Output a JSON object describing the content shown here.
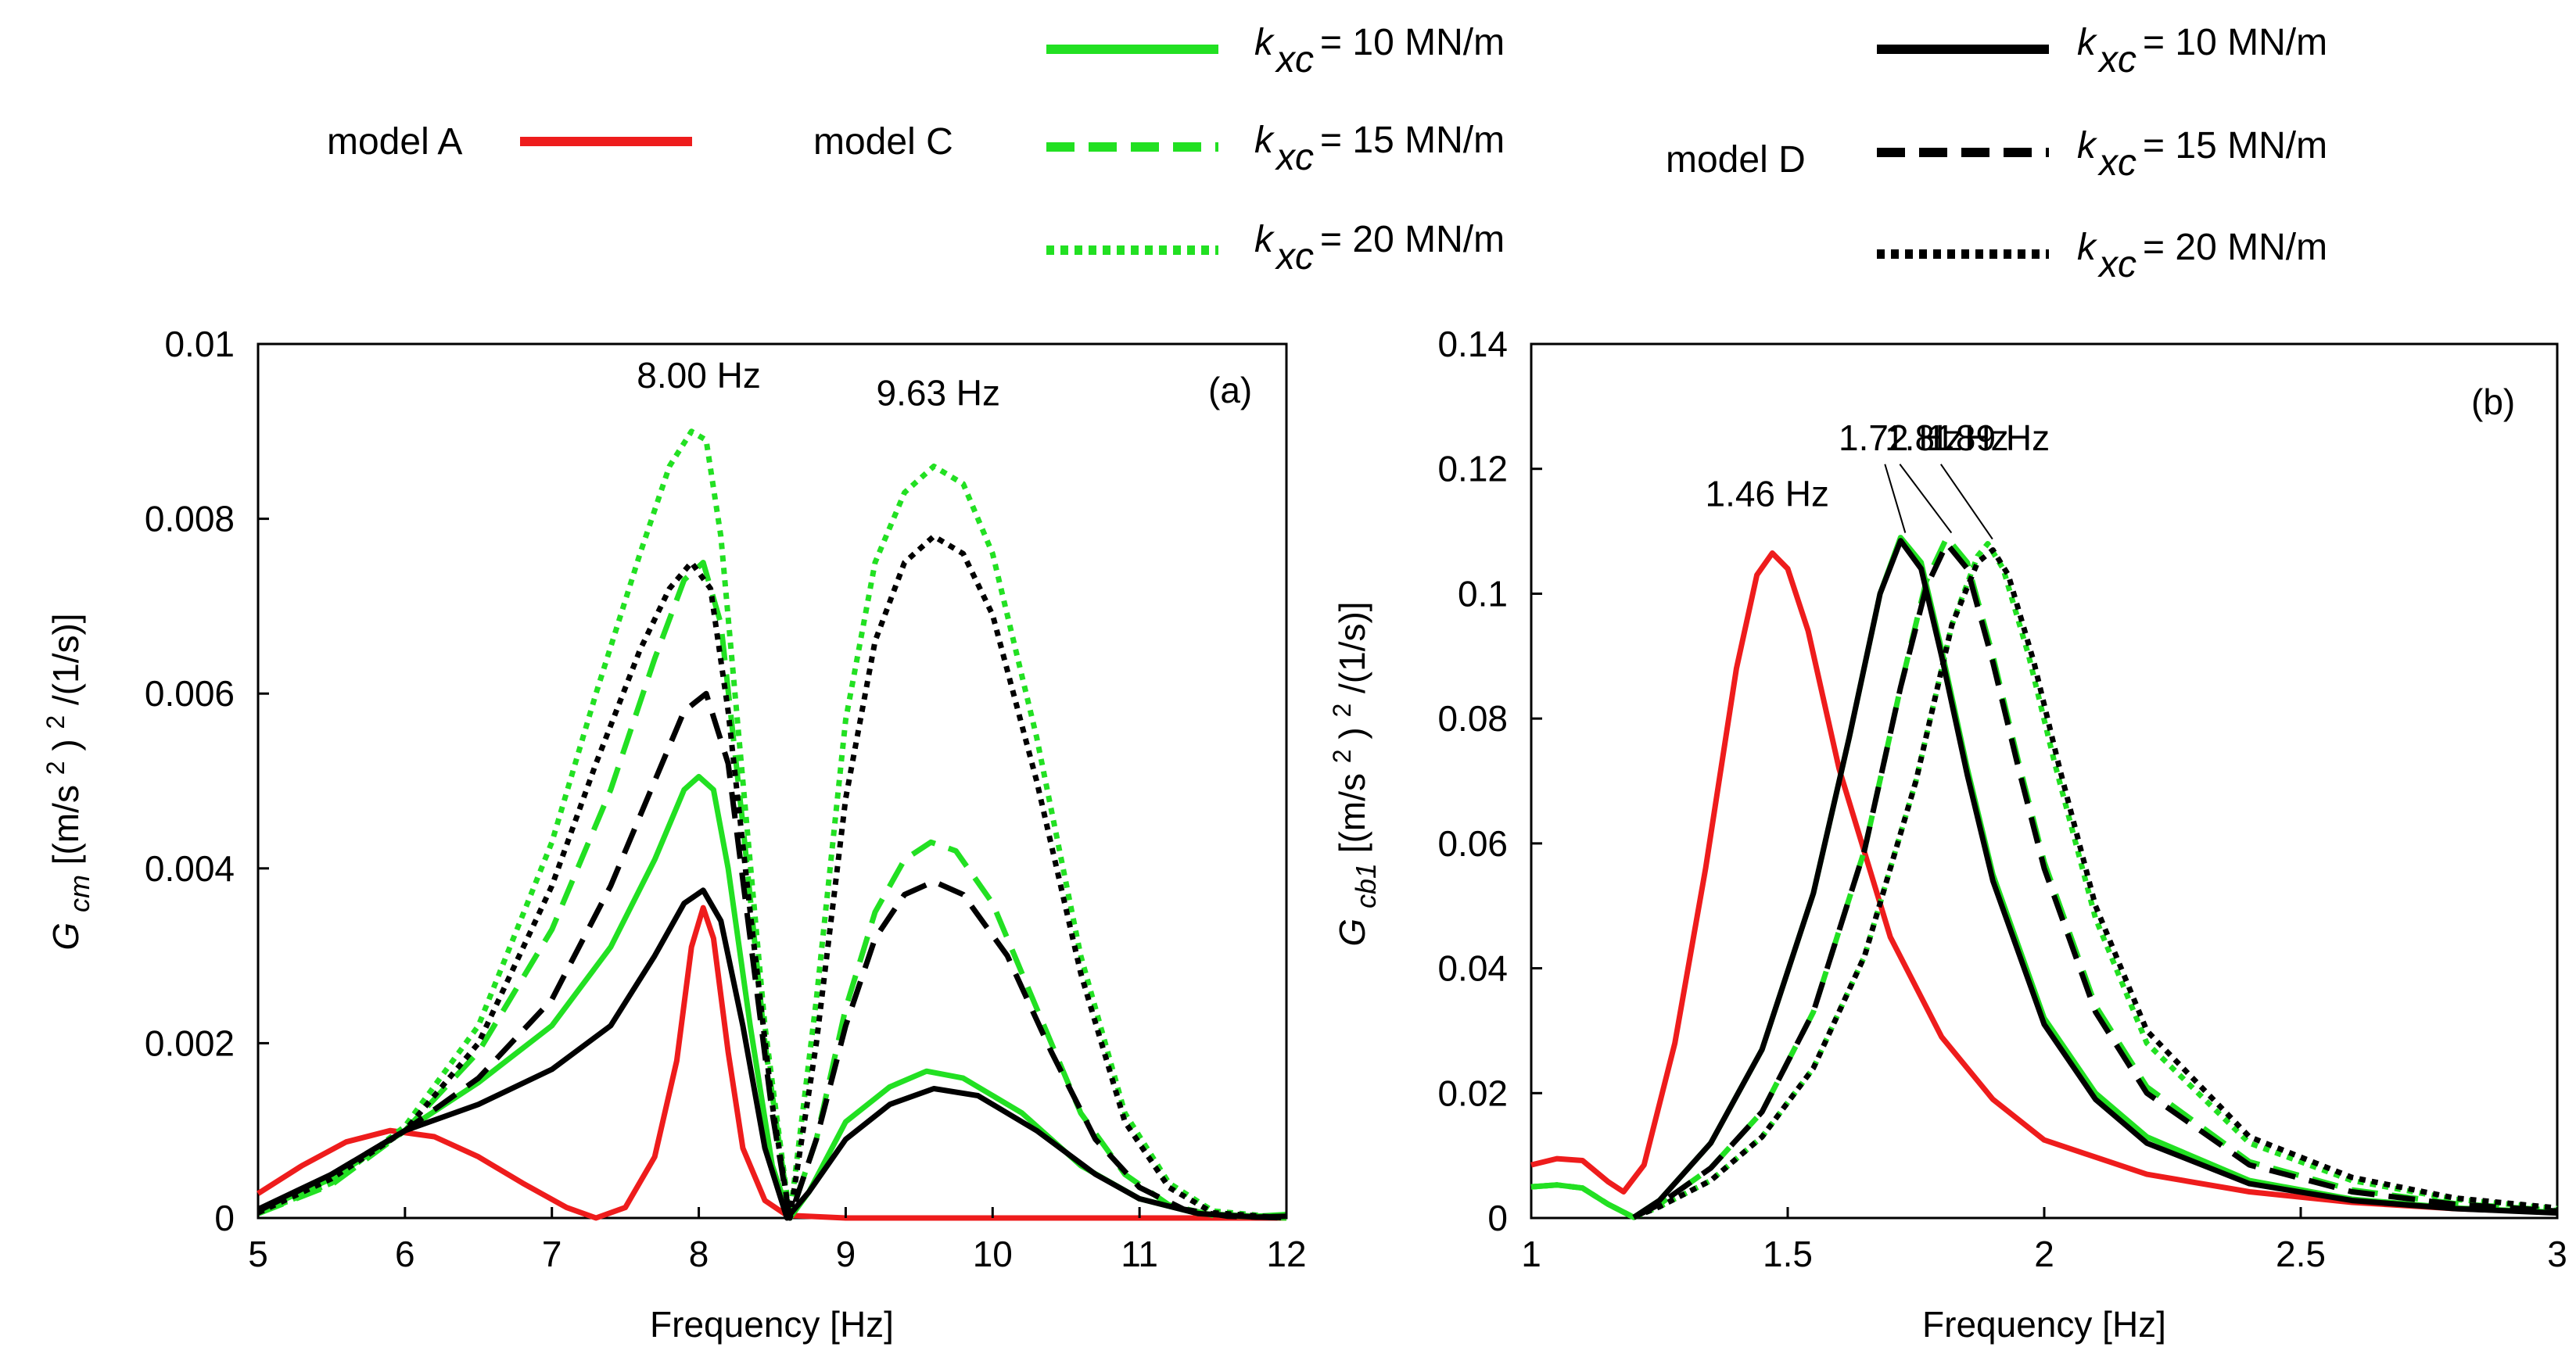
{
  "legend": {
    "model_a": "model A",
    "model_c": "model C",
    "model_d": "model D",
    "k_symbol": "k",
    "k_sub": "xc",
    "entries": [
      "= 10 MN/m",
      "= 15 MN/m",
      "= 20 MN/m"
    ]
  },
  "colors": {
    "model_a": "#ee1c1c",
    "model_c": "#22e022",
    "model_d": "#000000"
  },
  "chart_data": [
    {
      "type": "line",
      "panel": "(a)",
      "xlabel": "Frequency [Hz]",
      "ylabel_main": "G",
      "ylabel_sub": "cm",
      "ylabel_units_a": " [(m/s",
      "ylabel_units_sup1": "2",
      "ylabel_units_b": ")",
      "ylabel_units_sup2": "2",
      "ylabel_units_c": "/(1/s)]",
      "xlim": [
        5,
        12
      ],
      "ylim": [
        0,
        0.01
      ],
      "xticks": [
        "5",
        "6",
        "7",
        "8",
        "9",
        "10",
        "11",
        "12"
      ],
      "yticks": [
        "0",
        "0.002",
        "0.004",
        "0.006",
        "0.008",
        "0.01"
      ],
      "annotations": [
        {
          "text": "8.00 Hz",
          "x": 8.0,
          "y": 0.0095
        },
        {
          "text": "9.63 Hz",
          "x": 9.63,
          "y": 0.0093
        }
      ],
      "series": [
        {
          "name": "model A",
          "style": "solid",
          "color": "model_a",
          "x": [
            5.0,
            5.3,
            5.6,
            5.9,
            6.2,
            6.5,
            6.8,
            7.1,
            7.3,
            7.5,
            7.7,
            7.85,
            7.95,
            8.03,
            8.1,
            8.2,
            8.3,
            8.45,
            8.6,
            9.0,
            9.5,
            10.0,
            11.0,
            12.0
          ],
          "y": [
            0.00028,
            0.0006,
            0.00087,
            0.001,
            0.00093,
            0.0007,
            0.0004,
            0.00012,
            0.0,
            0.00012,
            0.0007,
            0.0018,
            0.0031,
            0.00355,
            0.0032,
            0.0019,
            0.0008,
            0.0002,
            3e-05,
            0.0,
            0.0,
            0.0,
            0.0,
            0.0
          ]
        },
        {
          "name": "model C, k = 10 MN/m",
          "style": "solid",
          "color": "model_c",
          "x": [
            5.0,
            5.5,
            6.0,
            6.5,
            7.0,
            7.4,
            7.7,
            7.9,
            8.0,
            8.1,
            8.2,
            8.35,
            8.5,
            8.62,
            8.75,
            9.0,
            9.3,
            9.55,
            9.8,
            10.2,
            10.6,
            11.0,
            11.4,
            11.8,
            12.0
          ],
          "y": [
            8e-05,
            0.00045,
            0.001,
            0.00155,
            0.0022,
            0.0031,
            0.0041,
            0.0049,
            0.00505,
            0.0049,
            0.004,
            0.0022,
            0.0006,
            0.0,
            0.0003,
            0.0011,
            0.0015,
            0.00168,
            0.0016,
            0.0012,
            0.0006,
            0.00022,
            5e-05,
            2e-05,
            4e-05
          ]
        },
        {
          "name": "model C, k = 15 MN/m",
          "style": "dashed",
          "color": "model_c",
          "x": [
            5.0,
            5.5,
            6.0,
            6.5,
            7.0,
            7.4,
            7.7,
            7.9,
            8.03,
            8.15,
            8.3,
            8.45,
            8.62,
            8.8,
            9.0,
            9.2,
            9.4,
            9.58,
            9.75,
            10.0,
            10.3,
            10.6,
            10.9,
            11.2,
            11.5,
            12.0
          ],
          "y": [
            5e-05,
            0.00038,
            0.001,
            0.0019,
            0.0033,
            0.0049,
            0.0064,
            0.0073,
            0.0075,
            0.0068,
            0.0045,
            0.002,
            0.0,
            0.0009,
            0.0024,
            0.0035,
            0.0041,
            0.0043,
            0.0042,
            0.0036,
            0.0024,
            0.0012,
            0.0005,
            0.00015,
            3e-05,
            0.0
          ]
        },
        {
          "name": "model C, k = 20 MN/m",
          "style": "dotted",
          "color": "model_c",
          "x": [
            5.0,
            5.5,
            6.0,
            6.5,
            7.0,
            7.3,
            7.6,
            7.8,
            7.95,
            8.05,
            8.15,
            8.3,
            8.45,
            8.62,
            8.8,
            9.0,
            9.2,
            9.4,
            9.6,
            9.8,
            10.0,
            10.3,
            10.6,
            10.9,
            11.2,
            11.5,
            12.0
          ],
          "y": [
            5e-05,
            0.0004,
            0.00105,
            0.0022,
            0.0043,
            0.006,
            0.0076,
            0.0086,
            0.009,
            0.0089,
            0.0078,
            0.005,
            0.0022,
            0.0,
            0.0025,
            0.0057,
            0.0075,
            0.0083,
            0.0086,
            0.0084,
            0.0076,
            0.0055,
            0.003,
            0.0012,
            0.0004,
            8e-05,
            0.0
          ]
        },
        {
          "name": "model D, k = 10 MN/m",
          "style": "solid",
          "color": "model_d",
          "x": [
            5.0,
            5.5,
            6.0,
            6.5,
            7.0,
            7.4,
            7.7,
            7.9,
            8.03,
            8.15,
            8.3,
            8.45,
            8.6,
            8.75,
            9.0,
            9.3,
            9.6,
            9.9,
            10.3,
            10.7,
            11.0,
            11.4,
            11.8,
            12.0
          ],
          "y": [
            0.0001,
            0.0005,
            0.001,
            0.0013,
            0.0017,
            0.0022,
            0.003,
            0.0036,
            0.00375,
            0.0034,
            0.0022,
            0.0008,
            0.0,
            0.0003,
            0.0009,
            0.0013,
            0.00148,
            0.0014,
            0.001,
            0.0005,
            0.00022,
            5e-05,
            1e-05,
            2e-05
          ]
        },
        {
          "name": "model D, k = 15 MN/m",
          "style": "dashed",
          "color": "model_d",
          "x": [
            5.0,
            5.5,
            6.0,
            6.5,
            7.0,
            7.4,
            7.7,
            7.9,
            8.05,
            8.2,
            8.35,
            8.5,
            8.62,
            8.8,
            9.0,
            9.2,
            9.4,
            9.6,
            9.8,
            10.1,
            10.4,
            10.7,
            11.0,
            11.3,
            11.6,
            12.0
          ],
          "y": [
            8e-05,
            0.0005,
            0.001,
            0.0016,
            0.0025,
            0.0038,
            0.005,
            0.0058,
            0.006,
            0.0052,
            0.0032,
            0.0012,
            0.0,
            0.0009,
            0.0022,
            0.0032,
            0.0037,
            0.00385,
            0.0037,
            0.003,
            0.0019,
            0.0009,
            0.00035,
            0.0001,
            2e-05,
            0.0
          ]
        },
        {
          "name": "model D, k = 20 MN/m",
          "style": "dotted",
          "color": "model_d",
          "x": [
            5.0,
            5.5,
            6.0,
            6.5,
            7.0,
            7.3,
            7.6,
            7.8,
            7.95,
            8.08,
            8.2,
            8.35,
            8.5,
            8.62,
            8.8,
            9.0,
            9.2,
            9.4,
            9.6,
            9.8,
            10.0,
            10.3,
            10.6,
            10.9,
            11.2,
            11.5,
            12.0
          ],
          "y": [
            6e-05,
            0.00045,
            0.001,
            0.002,
            0.0038,
            0.0052,
            0.0065,
            0.0072,
            0.0075,
            0.0072,
            0.0058,
            0.0035,
            0.0013,
            0.0,
            0.002,
            0.0048,
            0.0066,
            0.0075,
            0.0078,
            0.0076,
            0.0069,
            0.005,
            0.0028,
            0.0011,
            0.00035,
            6e-05,
            0.0
          ]
        }
      ]
    },
    {
      "type": "line",
      "panel": "(b)",
      "xlabel": "Frequency [Hz]",
      "ylabel_main": "G",
      "ylabel_sub": "cb1",
      "ylabel_units_a": " [(m/s",
      "ylabel_units_sup1": "2",
      "ylabel_units_b": ")",
      "ylabel_units_sup2": "2",
      "ylabel_units_c": "/(1/s)]",
      "xlim": [
        1,
        3
      ],
      "ylim": [
        0,
        0.14
      ],
      "xticks": [
        "1",
        "1.5",
        "2",
        "2.5",
        "3"
      ],
      "yticks": [
        "0",
        "0.02",
        "0.04",
        "0.06",
        "0.08",
        "0.1",
        "0.12",
        "0.14"
      ],
      "annotations": [
        {
          "text": "1.46 Hz",
          "x": 1.46,
          "y": 0.114
        },
        {
          "text": "1.72 Hz",
          "x": 1.72,
          "y": 0.123
        },
        {
          "text": "1.81 Hz",
          "x": 1.81,
          "y": 0.123
        },
        {
          "text": "1.89 Hz",
          "x": 1.89,
          "y": 0.123
        }
      ],
      "series": [
        {
          "name": "model A",
          "style": "solid",
          "color": "model_a",
          "x": [
            1.0,
            1.05,
            1.1,
            1.15,
            1.18,
            1.22,
            1.28,
            1.34,
            1.4,
            1.44,
            1.47,
            1.5,
            1.54,
            1.6,
            1.7,
            1.8,
            1.9,
            2.0,
            2.2,
            2.4,
            2.6,
            2.8,
            3.0
          ],
          "y": [
            0.0085,
            0.0095,
            0.0092,
            0.0058,
            0.0042,
            0.0085,
            0.028,
            0.056,
            0.088,
            0.103,
            0.1065,
            0.104,
            0.094,
            0.072,
            0.045,
            0.029,
            0.019,
            0.0125,
            0.007,
            0.0042,
            0.0025,
            0.0015,
            0.0009
          ]
        },
        {
          "name": "model C, k = 10 MN/m",
          "style": "solid",
          "color": "model_c",
          "x": [
            1.0,
            1.05,
            1.1,
            1.15,
            1.2,
            1.25,
            1.35,
            1.45,
            1.55,
            1.62,
            1.68,
            1.72,
            1.76,
            1.8,
            1.85,
            1.9,
            2.0,
            2.1,
            2.2,
            2.4,
            2.6,
            2.8,
            3.0
          ],
          "y": [
            0.005,
            0.0053,
            0.0048,
            0.0022,
            0.0001,
            0.0028,
            0.012,
            0.027,
            0.052,
            0.077,
            0.1,
            0.109,
            0.105,
            0.091,
            0.072,
            0.055,
            0.032,
            0.02,
            0.013,
            0.006,
            0.003,
            0.0016,
            0.0009
          ]
        },
        {
          "name": "model C, k = 15 MN/m",
          "style": "dashed",
          "color": "model_c",
          "x": [
            1.0,
            1.05,
            1.1,
            1.15,
            1.2,
            1.25,
            1.35,
            1.45,
            1.55,
            1.65,
            1.72,
            1.77,
            1.81,
            1.85,
            1.9,
            1.95,
            2.0,
            2.1,
            2.2,
            2.4,
            2.6,
            2.8,
            3.0
          ],
          "y": [
            0.005,
            0.0053,
            0.0048,
            0.0022,
            0.0001,
            0.0022,
            0.008,
            0.017,
            0.033,
            0.059,
            0.085,
            0.102,
            0.109,
            0.105,
            0.09,
            0.073,
            0.057,
            0.034,
            0.021,
            0.009,
            0.0045,
            0.0023,
            0.0012
          ]
        },
        {
          "name": "model C, k = 20 MN/m",
          "style": "dotted",
          "color": "model_c",
          "x": [
            1.0,
            1.05,
            1.1,
            1.15,
            1.2,
            1.25,
            1.35,
            1.45,
            1.55,
            1.65,
            1.75,
            1.82,
            1.87,
            1.89,
            1.92,
            1.97,
            2.02,
            2.1,
            2.2,
            2.4,
            2.6,
            2.8,
            3.0
          ],
          "y": [
            0.005,
            0.0053,
            0.0048,
            0.0022,
            0.0001,
            0.0018,
            0.006,
            0.013,
            0.024,
            0.042,
            0.07,
            0.095,
            0.106,
            0.108,
            0.104,
            0.09,
            0.073,
            0.048,
            0.028,
            0.012,
            0.006,
            0.003,
            0.0015
          ]
        },
        {
          "name": "model D, k = 10 MN/m",
          "style": "solid",
          "color": "model_d",
          "x": [
            1.2,
            1.25,
            1.35,
            1.45,
            1.55,
            1.62,
            1.68,
            1.72,
            1.76,
            1.8,
            1.85,
            1.9,
            2.0,
            2.1,
            2.2,
            2.4,
            2.6,
            2.8,
            3.0
          ],
          "y": [
            0.0001,
            0.0028,
            0.012,
            0.027,
            0.052,
            0.077,
            0.1,
            0.1085,
            0.104,
            0.09,
            0.071,
            0.054,
            0.031,
            0.019,
            0.012,
            0.0055,
            0.0028,
            0.0015,
            0.0008
          ]
        },
        {
          "name": "model D, k = 15 MN/m",
          "style": "dashed",
          "color": "model_d",
          "x": [
            1.2,
            1.25,
            1.35,
            1.45,
            1.55,
            1.65,
            1.72,
            1.77,
            1.81,
            1.85,
            1.9,
            1.95,
            2.0,
            2.1,
            2.2,
            2.4,
            2.6,
            2.8,
            3.0
          ],
          "y": [
            0.0001,
            0.0022,
            0.008,
            0.017,
            0.033,
            0.059,
            0.085,
            0.101,
            0.108,
            0.104,
            0.089,
            0.072,
            0.056,
            0.033,
            0.02,
            0.0085,
            0.0042,
            0.0022,
            0.0011
          ]
        },
        {
          "name": "model D, k = 20 MN/m",
          "style": "dotted",
          "color": "model_d",
          "x": [
            1.2,
            1.25,
            1.35,
            1.45,
            1.55,
            1.65,
            1.75,
            1.82,
            1.87,
            1.9,
            1.93,
            1.98,
            2.03,
            2.1,
            2.2,
            2.4,
            2.6,
            2.8,
            3.0
          ],
          "y": [
            0.0001,
            0.0018,
            0.006,
            0.013,
            0.024,
            0.042,
            0.07,
            0.095,
            0.105,
            0.107,
            0.103,
            0.089,
            0.072,
            0.05,
            0.03,
            0.013,
            0.0065,
            0.0032,
            0.0016
          ]
        }
      ]
    }
  ]
}
